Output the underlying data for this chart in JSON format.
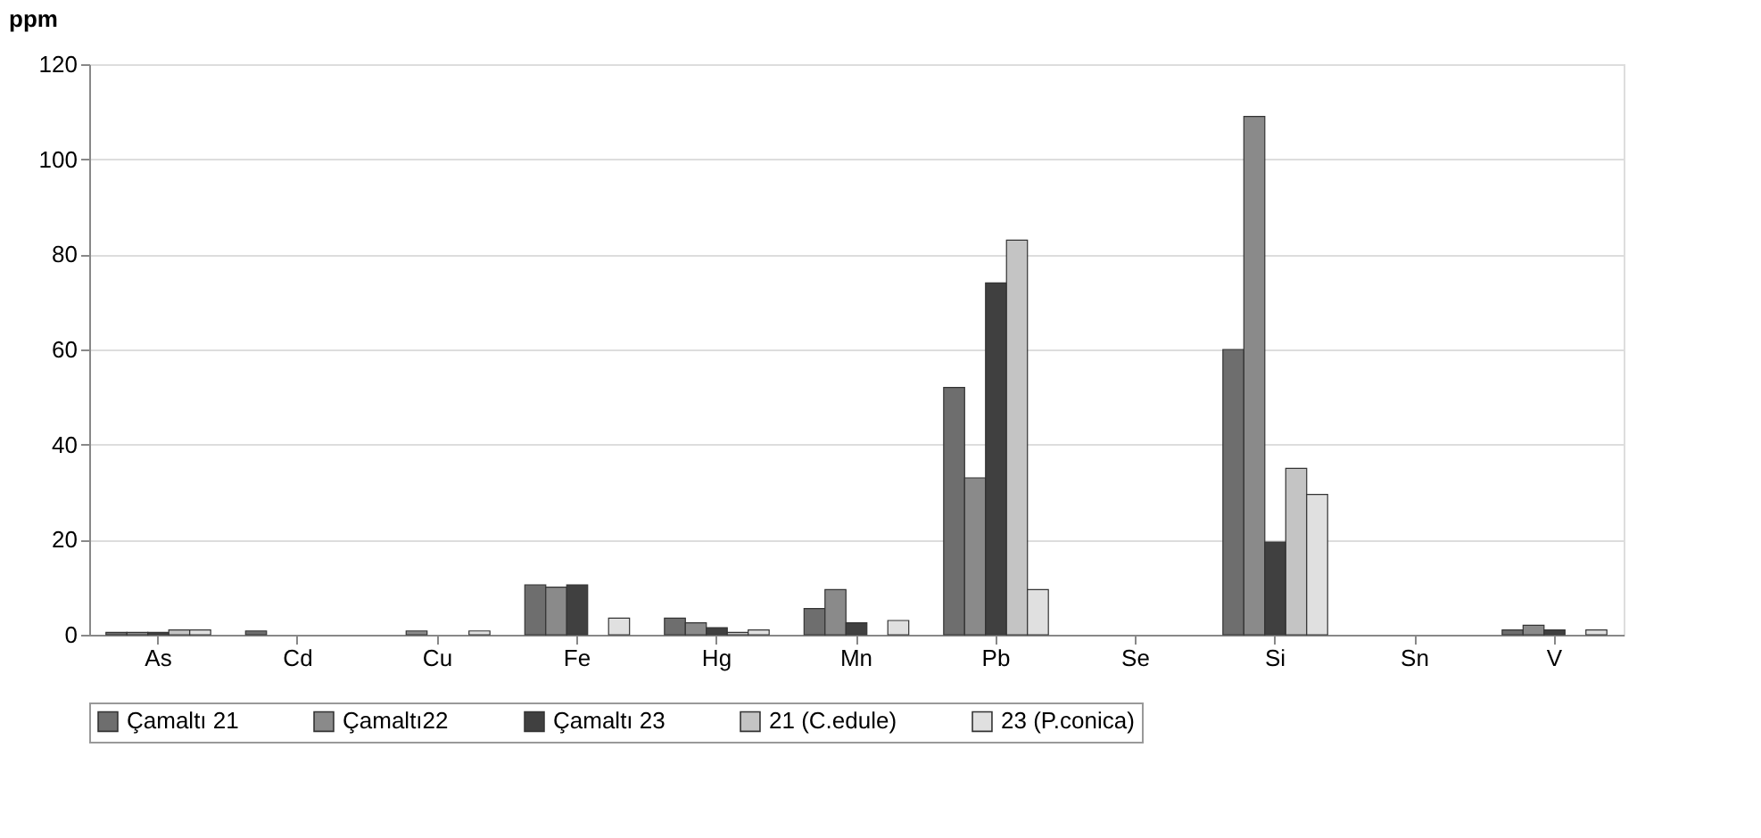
{
  "chart_data": {
    "type": "bar",
    "ylabel": "ppm",
    "categories": [
      "As",
      "Cd",
      "Cu",
      "Fe",
      "Hg",
      "Mn",
      "Pb",
      "Se",
      "Si",
      "Sn",
      "V"
    ],
    "series": [
      {
        "name": "Çamaltı 21",
        "color": "#6e6e6e",
        "values": [
          0.5,
          0.8,
          null,
          10.5,
          3.5,
          5.5,
          52,
          null,
          60,
          null,
          1
        ]
      },
      {
        "name": "Çamaltı22",
        "color": "#8a8a8a",
        "values": [
          0.5,
          null,
          0.8,
          10,
          2.5,
          9.5,
          33,
          null,
          109,
          null,
          2
        ]
      },
      {
        "name": "Çamaltı 23",
        "color": "#404040",
        "values": [
          0.5,
          null,
          null,
          10.5,
          1.5,
          2.5,
          74,
          null,
          19.5,
          null,
          1
        ]
      },
      {
        "name": "21 (C.edule)",
        "color": "#c4c4c4",
        "values": [
          1,
          null,
          null,
          null,
          0.5,
          null,
          83,
          null,
          35,
          null,
          null
        ]
      },
      {
        "name": "23 (P.conica)",
        "color": "#e0e0e0",
        "values": [
          1,
          null,
          0.8,
          3.5,
          1,
          3,
          9.5,
          null,
          29.5,
          null,
          1
        ]
      }
    ],
    "ylim": [
      0,
      120
    ],
    "yticks": [
      0,
      20,
      40,
      60,
      80,
      100,
      120
    ],
    "grid": "y",
    "legend": "bottom"
  }
}
